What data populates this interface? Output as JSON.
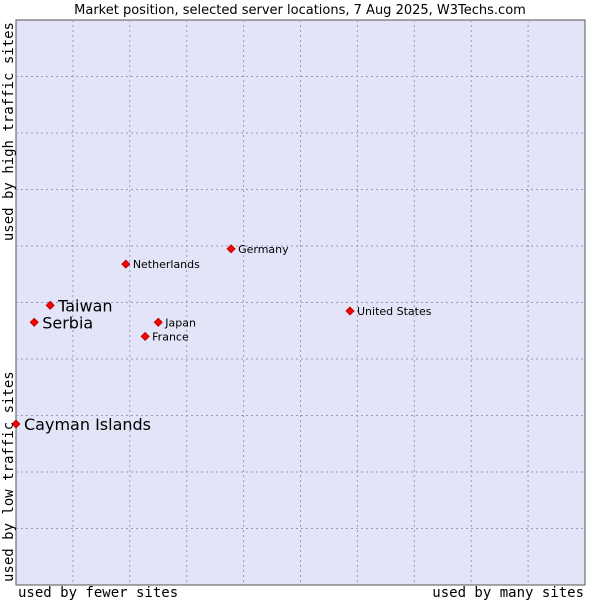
{
  "chart_data": {
    "type": "scatter",
    "title": "Market position, selected server locations, 7 Aug 2025, W3Techs.com",
    "xlabel_left": "used by fewer sites",
    "xlabel_right": "used by many sites",
    "ylabel_bottom": "used by low traffic sites",
    "ylabel_top": "used by high traffic sites",
    "xlim": [
      0,
      10
    ],
    "ylim": [
      0,
      10
    ],
    "grid": true,
    "colors": {
      "plot_background": "#e4e4f8",
      "grid": "#9999bb",
      "point": "#ff0000",
      "point_stroke": "#aa0000"
    },
    "points": [
      {
        "label": "Germany",
        "x": 3.78,
        "y": 5.95,
        "emphasis": false
      },
      {
        "label": "Netherlands",
        "x": 1.93,
        "y": 5.68,
        "emphasis": false
      },
      {
        "label": "Taiwan",
        "x": 0.6,
        "y": 4.95,
        "emphasis": true
      },
      {
        "label": "Serbia",
        "x": 0.32,
        "y": 4.65,
        "emphasis": true
      },
      {
        "label": "Japan",
        "x": 2.5,
        "y": 4.65,
        "emphasis": false
      },
      {
        "label": "France",
        "x": 2.27,
        "y": 4.4,
        "emphasis": false
      },
      {
        "label": "United States",
        "x": 5.87,
        "y": 4.85,
        "emphasis": false
      },
      {
        "label": "Cayman Islands",
        "x": 0.0,
        "y": 2.85,
        "emphasis": true
      }
    ]
  }
}
